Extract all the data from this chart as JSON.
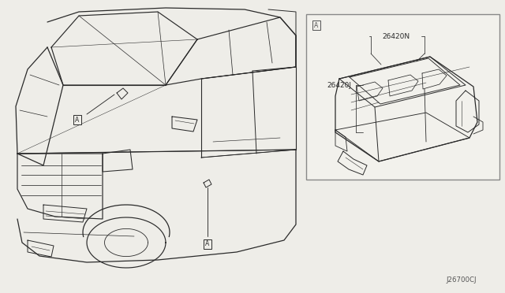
{
  "bg_color": "#eeede8",
  "line_color": "#2a2a2a",
  "box_line_color": "#555555",
  "part_label_1": "26420N",
  "part_label_2": "26420J",
  "diagram_code": "J26700CJ",
  "figsize": [
    6.4,
    3.72
  ],
  "dpi": 100
}
